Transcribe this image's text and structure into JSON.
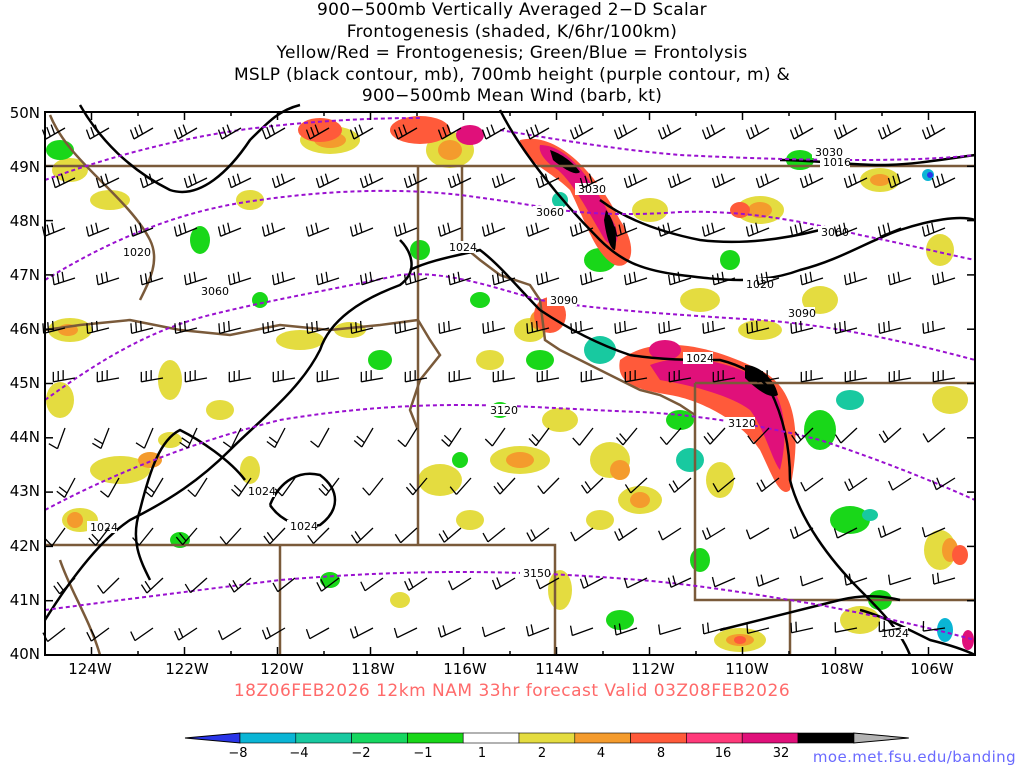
{
  "title": {
    "line1": "900−500mb Vertically Averaged 2−D Scalar",
    "line2": "Frontogenesis (shaded, K/6hr/100km)",
    "line3": "Yellow/Red = Frontogenesis;  Green/Blue = Frontolysis",
    "line4": "MSLP (black contour, mb), 700mb height (purple contour, m) &",
    "line5": "900−500mb Mean Wind (barb, kt)"
  },
  "axes": {
    "lat_labels": [
      "50N",
      "49N",
      "48N",
      "47N",
      "46N",
      "45N",
      "44N",
      "43N",
      "42N",
      "41N",
      "40N"
    ],
    "lon_labels": [
      "124W",
      "122W",
      "120W",
      "118W",
      "116W",
      "114W",
      "112W",
      "110W",
      "108W",
      "106W"
    ],
    "lat_range": [
      40,
      50
    ],
    "lon_range": [
      -125,
      -105
    ]
  },
  "valid_time": "18Z06FEB2026 12km NAM 33hr forecast Valid 03Z08FEB2026",
  "colorbar": {
    "labels": [
      "−8",
      "−4",
      "−2",
      "−1",
      "1",
      "2",
      "4",
      "8",
      "16",
      "32"
    ],
    "colors": [
      "#2a35e8",
      "#0ab5d5",
      "#18c9a0",
      "#16d760",
      "#19d719",
      "#ffffff",
      "#e4dc40",
      "#f49b2d",
      "#ff5a3a",
      "#ff3a7a",
      "#e0107a",
      "#000000",
      "#b4b4b4"
    ]
  },
  "colors": {
    "mslp_contour": "#000000",
    "height_contour": "#9a10d0",
    "state_border": "#7a5a3a",
    "barb": "#000000"
  },
  "mslp_contour_labels": [
    "1016",
    "1020",
    "1020",
    "1024",
    "1024",
    "1024",
    "1024",
    "1024",
    "1024"
  ],
  "height_contour_labels": [
    "3030",
    "3030",
    "3060",
    "3060",
    "3060",
    "3090",
    "3090",
    "3120",
    "3120",
    "3150"
  ],
  "credit": "moe.met.fsu.edu/banding"
}
